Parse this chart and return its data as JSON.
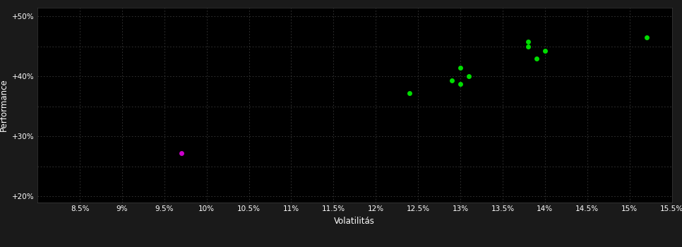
{
  "background_color": "#1a1a1a",
  "plot_bg_color": "#000000",
  "grid_color": "#3a3a3a",
  "text_color": "#ffffff",
  "xlabel": "Volatilitás",
  "ylabel": "Performance",
  "xlim": [
    0.08,
    0.155
  ],
  "ylim": [
    0.19,
    0.515
  ],
  "xticks": [
    0.085,
    0.09,
    0.095,
    0.1,
    0.105,
    0.11,
    0.115,
    0.12,
    0.125,
    0.13,
    0.135,
    0.14,
    0.145,
    0.15,
    0.155
  ],
  "yticks": [
    0.2,
    0.25,
    0.3,
    0.35,
    0.4,
    0.45,
    0.5
  ],
  "ytick_labels": [
    "+20%",
    "",
    "+30%",
    "",
    "+40%",
    "",
    "+50%"
  ],
  "xtick_labels": [
    "8.5%",
    "9%",
    "9.5%",
    "10%",
    "10.5%",
    "11%",
    "11.5%",
    "12%",
    "12.5%",
    "13%",
    "13.5%",
    "14%",
    "14.5%",
    "15%",
    "15.5%"
  ],
  "green_points": [
    [
      0.124,
      0.372
    ],
    [
      0.13,
      0.415
    ],
    [
      0.129,
      0.393
    ],
    [
      0.13,
      0.387
    ],
    [
      0.131,
      0.4
    ],
    [
      0.138,
      0.45
    ],
    [
      0.138,
      0.458
    ],
    [
      0.139,
      0.43
    ],
    [
      0.14,
      0.443
    ],
    [
      0.152,
      0.465
    ]
  ],
  "magenta_points": [
    [
      0.097,
      0.272
    ]
  ],
  "green_color": "#00dd00",
  "magenta_color": "#cc00cc",
  "marker_size": 5
}
